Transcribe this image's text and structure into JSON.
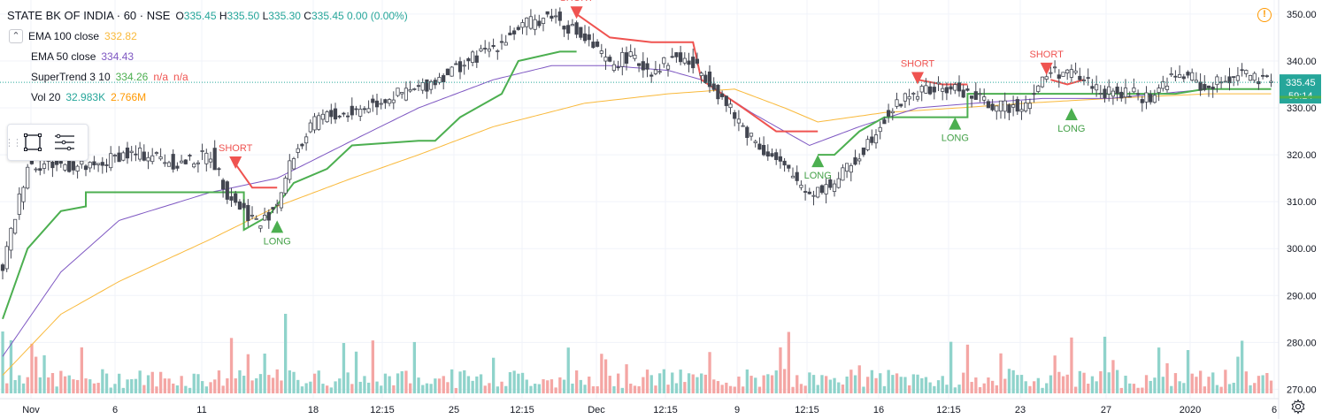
{
  "header": {
    "symbol": "STATE BK OF INDIA · 60 · NSE",
    "o_label": "O",
    "o_value": "335.45",
    "h_label": "H",
    "h_value": "335.50",
    "l_label": "L",
    "l_value": "335.30",
    "c_label": "C",
    "c_value": "335.45",
    "change": "0.00 (0.00%)"
  },
  "indicators": [
    {
      "label": "EMA 100 close",
      "values": [
        "332.82"
      ],
      "colors": [
        "#f9b93b"
      ]
    },
    {
      "label": "EMA 50 close",
      "values": [
        "334.43"
      ],
      "colors": [
        "#7e57c2"
      ]
    },
    {
      "label": "SuperTrend 3 10",
      "values": [
        "334.26",
        "n/a",
        "n/a"
      ],
      "colors": [
        "#4caf50",
        "#ef5350",
        "#ef5350"
      ]
    },
    {
      "label": "Vol 20",
      "values": [
        "32.983K",
        "2.766M"
      ],
      "colors": [
        "#26a69a",
        "#ff9800"
      ]
    }
  ],
  "icons": {
    "visibility": "eye-icon",
    "rectangle_tool": "rectangle-icon",
    "object_tree": "list-icon",
    "alert": "alert-icon",
    "settings": "gear-icon"
  },
  "price_axis": {
    "labels": [
      "350.00",
      "340.00",
      "330.00",
      "320.00",
      "310.00",
      "300.00",
      "290.00",
      "280.00",
      "270.00"
    ],
    "current_price": "335.45",
    "countdown": "59:14",
    "supertrend_value": "334.26"
  },
  "time_axis": {
    "labels": [
      "Nov",
      "6",
      "11",
      "18",
      "12:15",
      "25",
      "12:15",
      "Dec",
      "12:15",
      "9",
      "12:15",
      "16",
      "12:15",
      "23",
      "27",
      "2020",
      "6"
    ]
  },
  "signals": [
    {
      "text": "SHORT",
      "kind": "short"
    },
    {
      "text": "LONG",
      "kind": "long"
    },
    {
      "text": "SHORT",
      "kind": "short"
    },
    {
      "text": "LONG",
      "kind": "long"
    },
    {
      "text": "SHORT",
      "kind": "short"
    },
    {
      "text": "LONG",
      "kind": "long"
    },
    {
      "text": "SHORT",
      "kind": "short"
    },
    {
      "text": "LONG",
      "kind": "long"
    }
  ],
  "colors": {
    "up": "#26a69a",
    "down": "#ef5350",
    "up_vol": "#8fd3cb",
    "down_vol": "#f4a6a4",
    "ema100": "#f9b93b",
    "ema50": "#7e57c2",
    "supertrend_up": "#4caf50",
    "supertrend_down": "#ef5350",
    "grid": "#f0f3fa",
    "axis_text": "#131722",
    "price_tag": "#26a69a"
  },
  "chart_data": {
    "type": "candlestick",
    "symbol": "STATE BK OF INDIA",
    "interval": "60",
    "exchange": "NSE",
    "ylim": [
      268,
      353
    ],
    "grid": true,
    "close_path": [
      [
        0,
        296
      ],
      [
        6,
        318
      ],
      [
        14,
        318
      ],
      [
        22,
        317
      ],
      [
        28,
        320
      ],
      [
        36,
        320
      ],
      [
        42,
        318
      ],
      [
        50,
        320
      ],
      [
        54,
        312
      ],
      [
        57,
        309
      ],
      [
        62,
        305
      ],
      [
        66,
        310
      ],
      [
        70,
        320
      ],
      [
        76,
        328
      ],
      [
        84,
        329
      ],
      [
        92,
        332
      ],
      [
        100,
        334
      ],
      [
        110,
        339
      ],
      [
        118,
        343
      ],
      [
        124,
        347
      ],
      [
        132,
        350
      ],
      [
        138,
        346
      ],
      [
        142,
        343
      ],
      [
        146,
        339
      ],
      [
        150,
        341
      ],
      [
        156,
        338
      ],
      [
        162,
        341
      ],
      [
        166,
        339
      ],
      [
        170,
        336
      ],
      [
        176,
        328
      ],
      [
        182,
        322
      ],
      [
        188,
        317
      ],
      [
        194,
        312
      ],
      [
        200,
        314
      ],
      [
        206,
        320
      ],
      [
        212,
        328
      ],
      [
        218,
        333
      ],
      [
        224,
        334
      ],
      [
        230,
        334
      ],
      [
        234,
        332
      ],
      [
        240,
        330
      ],
      [
        246,
        331
      ],
      [
        252,
        338
      ],
      [
        258,
        337
      ],
      [
        266,
        333
      ],
      [
        272,
        333
      ],
      [
        276,
        332
      ],
      [
        280,
        336
      ],
      [
        285,
        337
      ],
      [
        289,
        334
      ],
      [
        294,
        336
      ],
      [
        298,
        338
      ],
      [
        301,
        336
      ],
      [
        305,
        335
      ]
    ],
    "ema100_path": [
      [
        0,
        273
      ],
      [
        14,
        286
      ],
      [
        28,
        293
      ],
      [
        50,
        302
      ],
      [
        66,
        309
      ],
      [
        84,
        315
      ],
      [
        100,
        320
      ],
      [
        118,
        326
      ],
      [
        140,
        331
      ],
      [
        160,
        333
      ],
      [
        176,
        334
      ],
      [
        188,
        330
      ],
      [
        196,
        327
      ],
      [
        212,
        329
      ],
      [
        230,
        330
      ],
      [
        246,
        331
      ],
      [
        266,
        332
      ],
      [
        290,
        333
      ],
      [
        305,
        333
      ]
    ],
    "ema50_path": [
      [
        0,
        277
      ],
      [
        14,
        295
      ],
      [
        28,
        306
      ],
      [
        50,
        312
      ],
      [
        66,
        315
      ],
      [
        84,
        323
      ],
      [
        100,
        330
      ],
      [
        118,
        336
      ],
      [
        132,
        339
      ],
      [
        146,
        339
      ],
      [
        160,
        338
      ],
      [
        168,
        336
      ],
      [
        180,
        329
      ],
      [
        194,
        322
      ],
      [
        206,
        326
      ],
      [
        220,
        330
      ],
      [
        234,
        331
      ],
      [
        250,
        332
      ],
      [
        266,
        332
      ],
      [
        290,
        334
      ],
      [
        305,
        334
      ]
    ],
    "supertrend": [
      {
        "trend": "up",
        "points": [
          [
            0,
            285
          ],
          [
            6,
            300
          ],
          [
            14,
            308
          ],
          [
            20,
            309
          ],
          [
            20,
            312
          ],
          [
            34,
            312
          ],
          [
            58,
            312
          ],
          [
            58,
            304
          ],
          [
            64,
            307
          ],
          [
            70,
            314
          ],
          [
            78,
            317
          ],
          [
            84,
            322
          ],
          [
            100,
            323
          ],
          [
            104,
            323
          ],
          [
            110,
            328
          ],
          [
            120,
            333
          ],
          [
            124,
            340
          ],
          [
            134,
            342
          ],
          [
            138,
            342
          ]
        ]
      },
      {
        "trend": "down",
        "points": [
          [
            138,
            350
          ],
          [
            146,
            345
          ],
          [
            156,
            344
          ],
          [
            166,
            344
          ],
          [
            168,
            336
          ],
          [
            178,
            330
          ],
          [
            186,
            325
          ],
          [
            196,
            325
          ]
        ]
      },
      {
        "trend": "up",
        "points": [
          [
            196,
            320
          ],
          [
            200,
            320
          ],
          [
            206,
            325
          ],
          [
            212,
            328
          ],
          [
            220,
            328
          ],
          [
            232,
            328
          ],
          [
            232,
            333
          ],
          [
            248,
            333
          ],
          [
            260,
            333
          ],
          [
            265,
            333
          ],
          [
            282,
            333
          ],
          [
            289,
            334
          ],
          [
            298,
            334
          ],
          [
            305,
            334
          ]
        ]
      },
      {
        "trend": "down",
        "points": [
          [
            56,
            318
          ],
          [
            60,
            313
          ],
          [
            66,
            313
          ]
        ]
      },
      {
        "trend": "down",
        "points": [
          [
            220,
            336
          ],
          [
            226,
            335
          ],
          [
            232,
            335
          ]
        ]
      },
      {
        "trend": "down",
        "points": [
          [
            252,
            336
          ],
          [
            256,
            335
          ],
          [
            260,
            336
          ]
        ]
      }
    ],
    "signals": [
      {
        "type": "SHORT",
        "bar": 56,
        "price": 317
      },
      {
        "type": "LONG",
        "bar": 66,
        "price": 306
      },
      {
        "type": "SHORT",
        "bar": 138,
        "price": 349
      },
      {
        "type": "LONG",
        "bar": 196,
        "price": 320
      },
      {
        "type": "SHORT",
        "bar": 220,
        "price": 335
      },
      {
        "type": "LONG",
        "bar": 229,
        "price": 328
      },
      {
        "type": "SHORT",
        "bar": 251,
        "price": 337
      },
      {
        "type": "LONG",
        "bar": 257,
        "price": 330
      }
    ],
    "volume_note": "volume histogram at bottom, colored by candle direction"
  }
}
